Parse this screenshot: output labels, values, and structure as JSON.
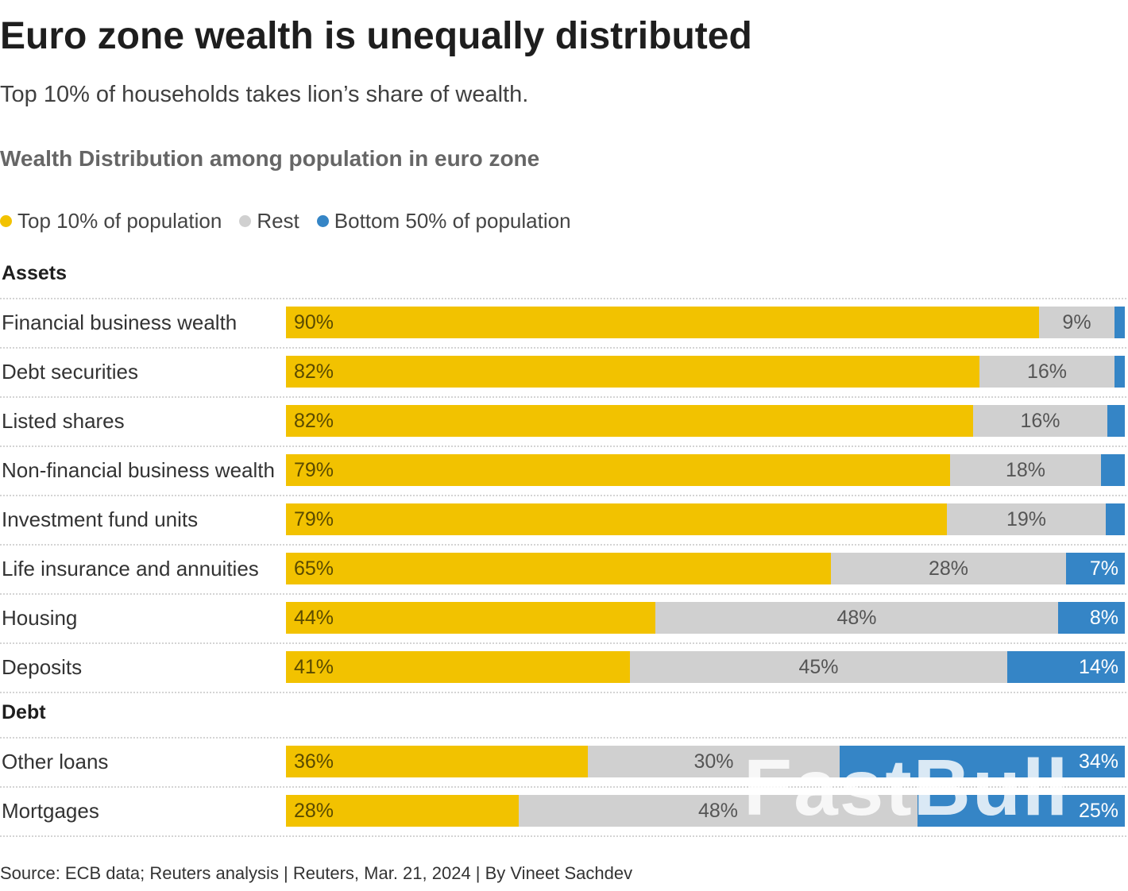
{
  "title": "Euro zone wealth is unequally distributed",
  "subtitle": "Top 10% of households takes lion’s share of wealth.",
  "chart_title": "Wealth Distribution among population in euro zone",
  "legend": [
    {
      "label": "Top 10% of population",
      "color": "#f2c200"
    },
    {
      "label": "Rest",
      "color": "#d0d0d0"
    },
    {
      "label": "Bottom 50% of population",
      "color": "#3585c6"
    }
  ],
  "source": "Source: ECB data; Reuters analysis | Reuters, Mar. 21, 2024 | By Vineet Sachdev",
  "watermark": "FastBull",
  "colors": {
    "top": "#f2c200",
    "rest": "#d0d0d0",
    "bottom": "#3585c6"
  },
  "chart_data": {
    "type": "bar",
    "orientation": "horizontal",
    "stacked": true,
    "normalized_percent": true,
    "series_names": [
      "Top 10% of population",
      "Rest",
      "Bottom 50% of population"
    ],
    "groups": [
      {
        "name": "Assets",
        "rows": [
          {
            "label": "Financial business wealth",
            "values": [
              90,
              9,
              1.3
            ],
            "labels": [
              "90%",
              "9%",
              ""
            ]
          },
          {
            "label": "Debt securities",
            "values": [
              82,
              16,
              1.2
            ],
            "labels": [
              "82%",
              "16%",
              ""
            ]
          },
          {
            "label": "Listed shares",
            "values": [
              82,
              16,
              2.1
            ],
            "labels": [
              "82%",
              "16%",
              ""
            ]
          },
          {
            "label": "Non-financial business wealth",
            "values": [
              79,
              18,
              2.8
            ],
            "labels": [
              "79%",
              "18%",
              ""
            ]
          },
          {
            "label": "Investment fund units",
            "values": [
              79,
              19,
              2.3
            ],
            "labels": [
              "79%",
              "19%",
              ""
            ]
          },
          {
            "label": "Life insurance and annuities",
            "values": [
              65,
              28,
              7
            ],
            "labels": [
              "65%",
              "28%",
              "7%"
            ]
          },
          {
            "label": "Housing",
            "values": [
              44,
              48,
              8
            ],
            "labels": [
              "44%",
              "48%",
              "8%"
            ]
          },
          {
            "label": "Deposits",
            "values": [
              41,
              45,
              14
            ],
            "labels": [
              "41%",
              "45%",
              "14%"
            ]
          }
        ]
      },
      {
        "name": "Debt",
        "rows": [
          {
            "label": "Other loans",
            "values": [
              36,
              30,
              34
            ],
            "labels": [
              "36%",
              "30%",
              "34%"
            ]
          },
          {
            "label": "Mortgages",
            "values": [
              28,
              48,
              25
            ],
            "labels": [
              "28%",
              "48%",
              "25%"
            ]
          }
        ]
      }
    ]
  }
}
